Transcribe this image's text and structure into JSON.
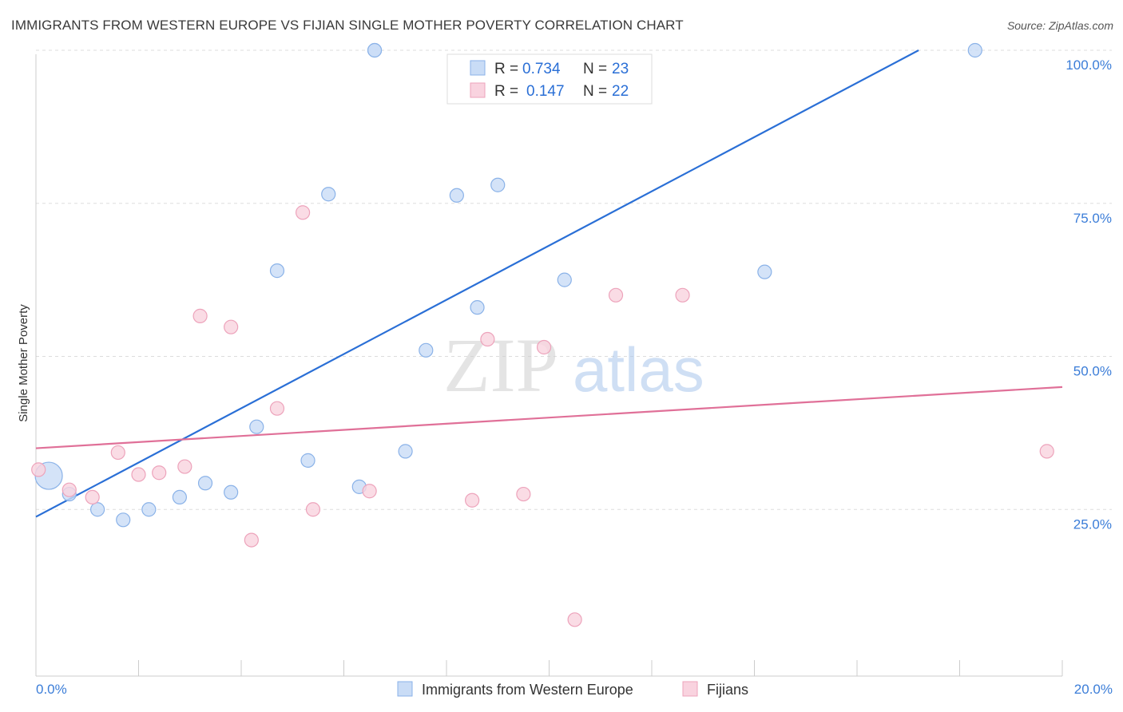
{
  "title": "IMMIGRANTS FROM WESTERN EUROPE VS FIJIAN SINGLE MOTHER POVERTY CORRELATION CHART",
  "source": "Source: ZipAtlas.com",
  "watermark": {
    "zip": "ZIP",
    "atlas": "atlas"
  },
  "legend": {
    "rows": [
      {
        "r_label": "R = ",
        "r_value": "0.734",
        "n_label": "N = ",
        "n_value": "23",
        "color": "#a9c8f0",
        "stroke": "#6a9de0"
      },
      {
        "r_label": "R = ",
        "r_value": "0.147",
        "n_label": "N = ",
        "n_value": "22",
        "color": "#f7c3d3",
        "stroke": "#e88aa8"
      }
    ]
  },
  "colors": {
    "blue_fill": "#c9dcf6",
    "blue_stroke": "#8ab2e8",
    "blue_line": "#2a6fd6",
    "pink_fill": "#f9d3df",
    "pink_stroke": "#eda3bb",
    "pink_line": "#e07098",
    "grid": "#dddddd",
    "axis_text": "#3b7dd8"
  },
  "chart_data": {
    "type": "scatter",
    "title": "IMMIGRANTS FROM WESTERN EUROPE VS FIJIAN SINGLE MOTHER POVERTY CORRELATION CHART",
    "xlabel": "",
    "ylabel": "Single Mother Poverty",
    "xlim": [
      0,
      20
    ],
    "ylim": [
      0,
      100
    ],
    "x_ticks": [
      "0.0%",
      "20.0%"
    ],
    "y_ticks": [
      {
        "value": 25,
        "label": "25.0%"
      },
      {
        "value": 50,
        "label": "50.0%"
      },
      {
        "value": 75,
        "label": "75.0%"
      },
      {
        "value": 100,
        "label": "100.0%"
      }
    ],
    "grid": true,
    "legend_position": "top-center",
    "series": [
      {
        "name": "Immigrants from Western Europe",
        "color": "#c9dcf6",
        "points": [
          [
            0.25,
            30.5,
            "large"
          ],
          [
            0.65,
            27.5
          ],
          [
            1.2,
            25.0
          ],
          [
            1.7,
            23.3
          ],
          [
            2.2,
            25.0
          ],
          [
            2.8,
            27.0
          ],
          [
            3.3,
            29.3
          ],
          [
            3.8,
            27.8
          ],
          [
            4.3,
            38.5
          ],
          [
            4.7,
            64.0
          ],
          [
            5.3,
            33.0
          ],
          [
            5.7,
            76.5
          ],
          [
            6.3,
            28.7
          ],
          [
            6.6,
            100.0
          ],
          [
            7.2,
            34.5
          ],
          [
            7.6,
            51.0
          ],
          [
            8.2,
            76.3
          ],
          [
            8.6,
            58.0
          ],
          [
            9.0,
            78.0
          ],
          [
            10.3,
            62.5
          ],
          [
            14.2,
            63.8
          ],
          [
            18.3,
            100.0
          ],
          [
            6.6,
            100.0
          ]
        ],
        "trend": {
          "x": [
            0,
            17.2
          ],
          "y": [
            23.8,
            100.0
          ]
        }
      },
      {
        "name": "Fijians",
        "color": "#f9d3df",
        "points": [
          [
            0.05,
            31.5
          ],
          [
            0.65,
            28.2
          ],
          [
            1.1,
            27.0
          ],
          [
            1.6,
            34.3
          ],
          [
            2.0,
            30.7
          ],
          [
            2.4,
            31.0
          ],
          [
            2.9,
            32.0
          ],
          [
            3.2,
            56.6
          ],
          [
            3.8,
            54.8
          ],
          [
            4.2,
            20.0
          ],
          [
            4.7,
            41.5
          ],
          [
            5.2,
            73.5
          ],
          [
            5.4,
            25.0
          ],
          [
            6.5,
            28.0
          ],
          [
            8.5,
            26.5
          ],
          [
            8.8,
            52.8
          ],
          [
            9.5,
            27.5
          ],
          [
            9.9,
            51.5
          ],
          [
            11.3,
            60.0
          ],
          [
            12.6,
            60.0
          ],
          [
            10.5,
            7.0
          ],
          [
            19.7,
            34.5
          ]
        ],
        "trend": {
          "x": [
            0,
            20
          ],
          "y": [
            35.0,
            45.0
          ]
        }
      }
    ]
  },
  "bottom_legend": {
    "items": [
      {
        "label": "Immigrants from Western Europe"
      },
      {
        "label": "Fijians"
      }
    ]
  }
}
